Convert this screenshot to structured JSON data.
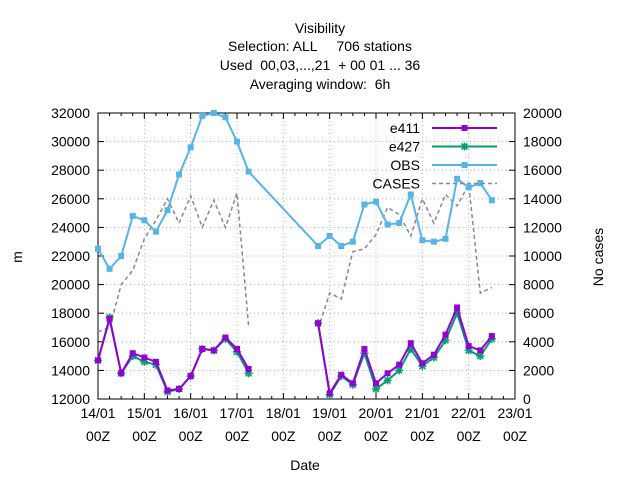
{
  "chart_data": {
    "type": "line",
    "title_lines": [
      "Visibility",
      "Selection: ALL     706 stations",
      "Used  00,03,...,21  + 00 01 ... 36",
      "Averaging window:  6h"
    ],
    "xlabel": "Date",
    "ylabel": "m",
    "y2label": "No cases",
    "x_ticks": [
      {
        "day": 0,
        "line1": "14/01",
        "line2": "00Z"
      },
      {
        "day": 1,
        "line1": "15/01",
        "line2": "00Z"
      },
      {
        "day": 2,
        "line1": "16/01",
        "line2": "00Z"
      },
      {
        "day": 3,
        "line1": "17/01",
        "line2": "00Z"
      },
      {
        "day": 4,
        "line1": "18/01",
        "line2": "00Z"
      },
      {
        "day": 5,
        "line1": "19/01",
        "line2": "00Z"
      },
      {
        "day": 6,
        "line1": "20/01",
        "line2": "00Z"
      },
      {
        "day": 7,
        "line1": "21/01",
        "line2": "00Z"
      },
      {
        "day": 8,
        "line1": "22/01",
        "line2": "00Z"
      },
      {
        "day": 9,
        "line1": "23/01",
        "line2": "00Z"
      }
    ],
    "xlim": [
      0,
      9
    ],
    "ylim": [
      12000,
      32000
    ],
    "y_ticks": [
      12000,
      14000,
      16000,
      18000,
      20000,
      22000,
      24000,
      26000,
      28000,
      30000,
      32000
    ],
    "y2lim": [
      0,
      20000
    ],
    "y2_ticks": [
      0,
      2000,
      4000,
      6000,
      8000,
      10000,
      12000,
      14000,
      16000,
      18000,
      20000
    ],
    "grid": true,
    "legend_position": "top-right",
    "series": [
      {
        "name": "e411",
        "color": "#9400d3",
        "marker": "square",
        "axis": "y1",
        "x": [
          0.0,
          0.25,
          0.5,
          0.75,
          1.0,
          1.25,
          1.5,
          1.75,
          2.0,
          2.25,
          2.5,
          2.75,
          3.0,
          3.25,
          3.5,
          4.75,
          5.0,
          5.25,
          5.5,
          5.75,
          6.0,
          6.25,
          6.5,
          6.75,
          7.0,
          7.25,
          7.5,
          7.75,
          8.0,
          8.25,
          8.5
        ],
        "y": [
          14700,
          17600,
          13800,
          15200,
          14900,
          14600,
          12600,
          12700,
          13600,
          15500,
          15400,
          16300,
          15500,
          14100,
          null,
          17300,
          12400,
          13700,
          13100,
          15500,
          13100,
          13800,
          14400,
          15900,
          14500,
          15100,
          16500,
          18400,
          15700,
          15400,
          16400
        ]
      },
      {
        "name": "e427",
        "color": "#009e73",
        "marker": "star",
        "axis": "y1",
        "x": [
          0.0,
          0.25,
          0.5,
          0.75,
          1.0,
          1.25,
          1.5,
          1.75,
          2.0,
          2.25,
          2.5,
          2.75,
          3.0,
          3.25,
          3.5,
          4.75,
          5.0,
          5.25,
          5.5,
          5.75,
          6.0,
          6.25,
          6.5,
          6.75,
          7.0,
          7.25,
          7.5,
          7.75,
          8.0,
          8.25,
          8.5
        ],
        "y": [
          14700,
          17700,
          13800,
          15000,
          14600,
          14400,
          12500,
          12700,
          13600,
          15500,
          15400,
          16200,
          15300,
          13800,
          null,
          17300,
          12300,
          13600,
          13000,
          15200,
          12700,
          13300,
          14000,
          15500,
          14300,
          14900,
          16100,
          18000,
          15400,
          15000,
          16200
        ]
      },
      {
        "name": "OBS",
        "color": "#56b4e9",
        "marker": "square",
        "axis": "y1",
        "x": [
          0.0,
          0.25,
          0.5,
          0.75,
          1.0,
          1.25,
          1.5,
          1.75,
          2.0,
          2.25,
          2.5,
          2.75,
          3.0,
          3.25,
          4.75,
          5.0,
          5.25,
          5.5,
          5.75,
          6.0,
          6.25,
          6.5,
          6.75,
          7.0,
          7.25,
          7.5,
          7.75,
          8.0,
          8.25,
          8.5
        ],
        "y": [
          22500,
          21100,
          22000,
          24800,
          24500,
          23700,
          25200,
          27700,
          29600,
          31800,
          32000,
          31700,
          30000,
          27900,
          22700,
          23400,
          22700,
          23000,
          25600,
          25800,
          24200,
          24300,
          26300,
          23100,
          23000,
          23200,
          27400,
          26800,
          27100,
          25900
        ]
      },
      {
        "name": "CASES",
        "color": "#888888",
        "dash": true,
        "axis": "y2",
        "x": [
          0.0,
          0.25,
          0.5,
          0.75,
          1.0,
          1.25,
          1.5,
          1.75,
          2.0,
          2.25,
          2.5,
          2.75,
          3.0,
          3.25,
          3.5,
          4.75,
          5.0,
          5.25,
          5.5,
          5.75,
          6.0,
          6.25,
          6.5,
          6.75,
          7.0,
          7.25,
          7.5,
          7.75,
          8.0,
          8.25,
          8.5
        ],
        "y": [
          4700,
          5000,
          8000,
          9000,
          11200,
          12500,
          14000,
          12300,
          14200,
          12000,
          13900,
          12000,
          14400,
          5100,
          null,
          4900,
          7400,
          7000,
          10300,
          10500,
          11500,
          13400,
          12900,
          11400,
          14000,
          12300,
          14300,
          13500,
          15000,
          7400,
          7800
        ]
      }
    ]
  }
}
